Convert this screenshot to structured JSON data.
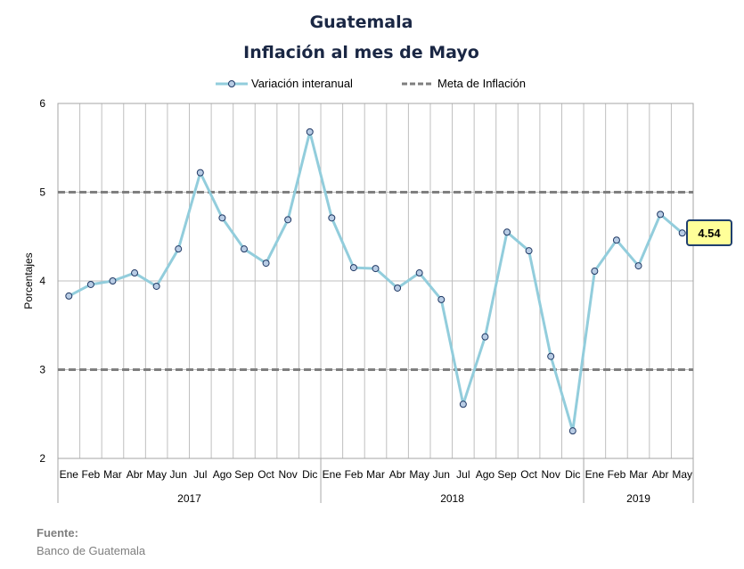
{
  "title": "Guatemala",
  "subtitle": "Inflación al mes de Mayo",
  "legend": {
    "series_label": "Variación interanual",
    "target_label": "Meta de Inflación"
  },
  "source": {
    "label": "Fuente:",
    "value": "Banco de Guatemala"
  },
  "callout_value": "4.54",
  "colors": {
    "series": "#92cddc",
    "marker_fill": "#b8cce4",
    "marker_stroke": "#1f3864",
    "target": "#7f7f7f",
    "grid": "#bfbfbf",
    "title": "#1a2744"
  },
  "chart_data": {
    "type": "line",
    "title": "Guatemala",
    "subtitle": "Inflación al mes de Mayo",
    "ylabel": "Porcentajes",
    "xlabel": "",
    "ylim": [
      2,
      6
    ],
    "yticks": [
      2,
      3,
      4,
      5,
      6
    ],
    "grid": true,
    "legend_position": "top",
    "categories": [
      "Ene",
      "Feb",
      "Mar",
      "Abr",
      "May",
      "Jun",
      "Jul",
      "Ago",
      "Sep",
      "Oct",
      "Nov",
      "Dic",
      "Ene",
      "Feb",
      "Mar",
      "Abr",
      "May",
      "Jun",
      "Jul",
      "Ago",
      "Sep",
      "Oct",
      "Nov",
      "Dic",
      "Ene",
      "Feb",
      "Mar",
      "Abr",
      "May"
    ],
    "groups": [
      {
        "label": "2017",
        "count": 12
      },
      {
        "label": "2018",
        "count": 12
      },
      {
        "label": "2019",
        "count": 5
      }
    ],
    "series": [
      {
        "name": "Variación interanual",
        "values": [
          3.83,
          3.96,
          4.0,
          4.09,
          3.94,
          4.36,
          5.22,
          4.71,
          4.36,
          4.2,
          4.69,
          5.68,
          4.71,
          4.15,
          4.14,
          3.92,
          4.09,
          3.79,
          2.61,
          3.37,
          4.55,
          4.34,
          3.15,
          2.31,
          4.11,
          4.46,
          4.17,
          4.75,
          4.54
        ]
      }
    ],
    "target_lines": [
      {
        "name": "Meta de Inflación",
        "values": [
          3,
          5
        ]
      }
    ],
    "annotations": [
      {
        "category_index": 28,
        "text": "4.54"
      }
    ]
  }
}
